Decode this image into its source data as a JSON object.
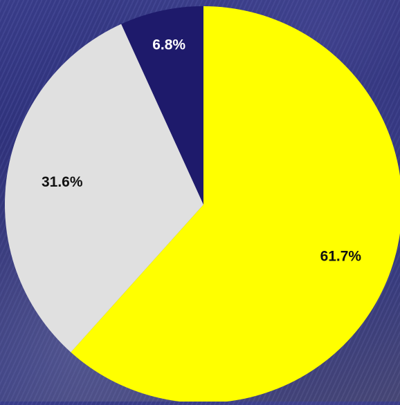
{
  "chart_data": {
    "type": "pie",
    "title": "",
    "slices": [
      {
        "label": "61.7%",
        "value": 61.7,
        "color": "#ffff00",
        "label_color": "#111111"
      },
      {
        "label": "31.6%",
        "value": 31.6,
        "color": "#e0e0e0",
        "label_color": "#111111"
      },
      {
        "label": "6.8%",
        "value": 6.8,
        "color": "#1e1a6b",
        "label_color": "#ffffff"
      }
    ],
    "start_angle": "12 o'clock",
    "direction": "clockwise",
    "legend": "none"
  }
}
